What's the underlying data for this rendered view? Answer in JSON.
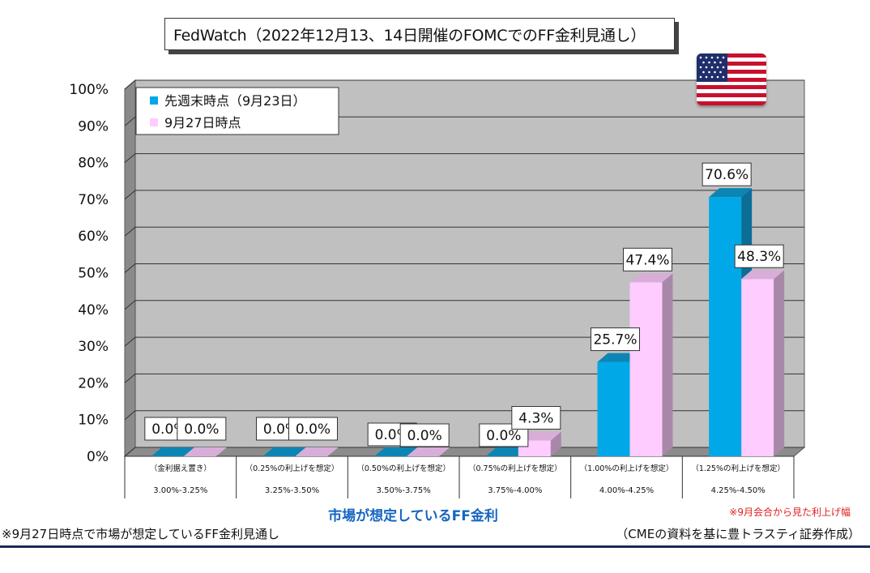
{
  "title": "FedWatch（2022年12月13、14日開催のFOMCでのFF金利見通し）",
  "xaxis_title": "市場が想定しているFF金利",
  "note_red": "※9月会合から見た利上げ幅",
  "footnote_left": "※9月27日時点で市場が想定しているFF金利見通し",
  "footnote_right": "（CMEの資料を基に豊トラスティ証券作成）",
  "flag_icon": "us-flag-icon",
  "chart_data": {
    "type": "bar",
    "categories": [
      {
        "top": "（金利据え置き）",
        "bottom": "3.00%-3.25%"
      },
      {
        "top": "（0.25%の利上げを想定）",
        "bottom": "3.25%-3.50%"
      },
      {
        "top": "（0.50%の利上げを想定）",
        "bottom": "3.50%-3.75%"
      },
      {
        "top": "（0.75%の利上げを想定）",
        "bottom": "3.75%-4.00%"
      },
      {
        "top": "（1.00%の利上げを想定）",
        "bottom": "4.00%-4.25%"
      },
      {
        "top": "（1.25%の利上げを想定）",
        "bottom": "4.25%-4.50%"
      }
    ],
    "series": [
      {
        "name": "先週末時点（9月23日）",
        "values": [
          0.0,
          0.0,
          0.0,
          0.0,
          25.7,
          70.6
        ],
        "labels": [
          "0.0%",
          "0.0%",
          "0.0%",
          "0.0%",
          "25.7%",
          "70.6%"
        ],
        "color": "#00a8e8",
        "side": "#0a6e96",
        "top": "#0b86b4"
      },
      {
        "name": "9月27日時点",
        "values": [
          0.0,
          0.0,
          0.0,
          4.3,
          47.4,
          48.3
        ],
        "labels": [
          "0.0%",
          "0.0%",
          "0.0%",
          "4.3%",
          "47.4%",
          "48.3%"
        ],
        "color": "#ffccff",
        "side": "#a888a8",
        "top": "#d8aed8"
      }
    ],
    "yticks": [
      "0%",
      "10%",
      "20%",
      "30%",
      "40%",
      "50%",
      "60%",
      "70%",
      "80%",
      "90%",
      "100%"
    ],
    "ylim": [
      0,
      100
    ],
    "grid": true,
    "legend_position": "top-left"
  }
}
